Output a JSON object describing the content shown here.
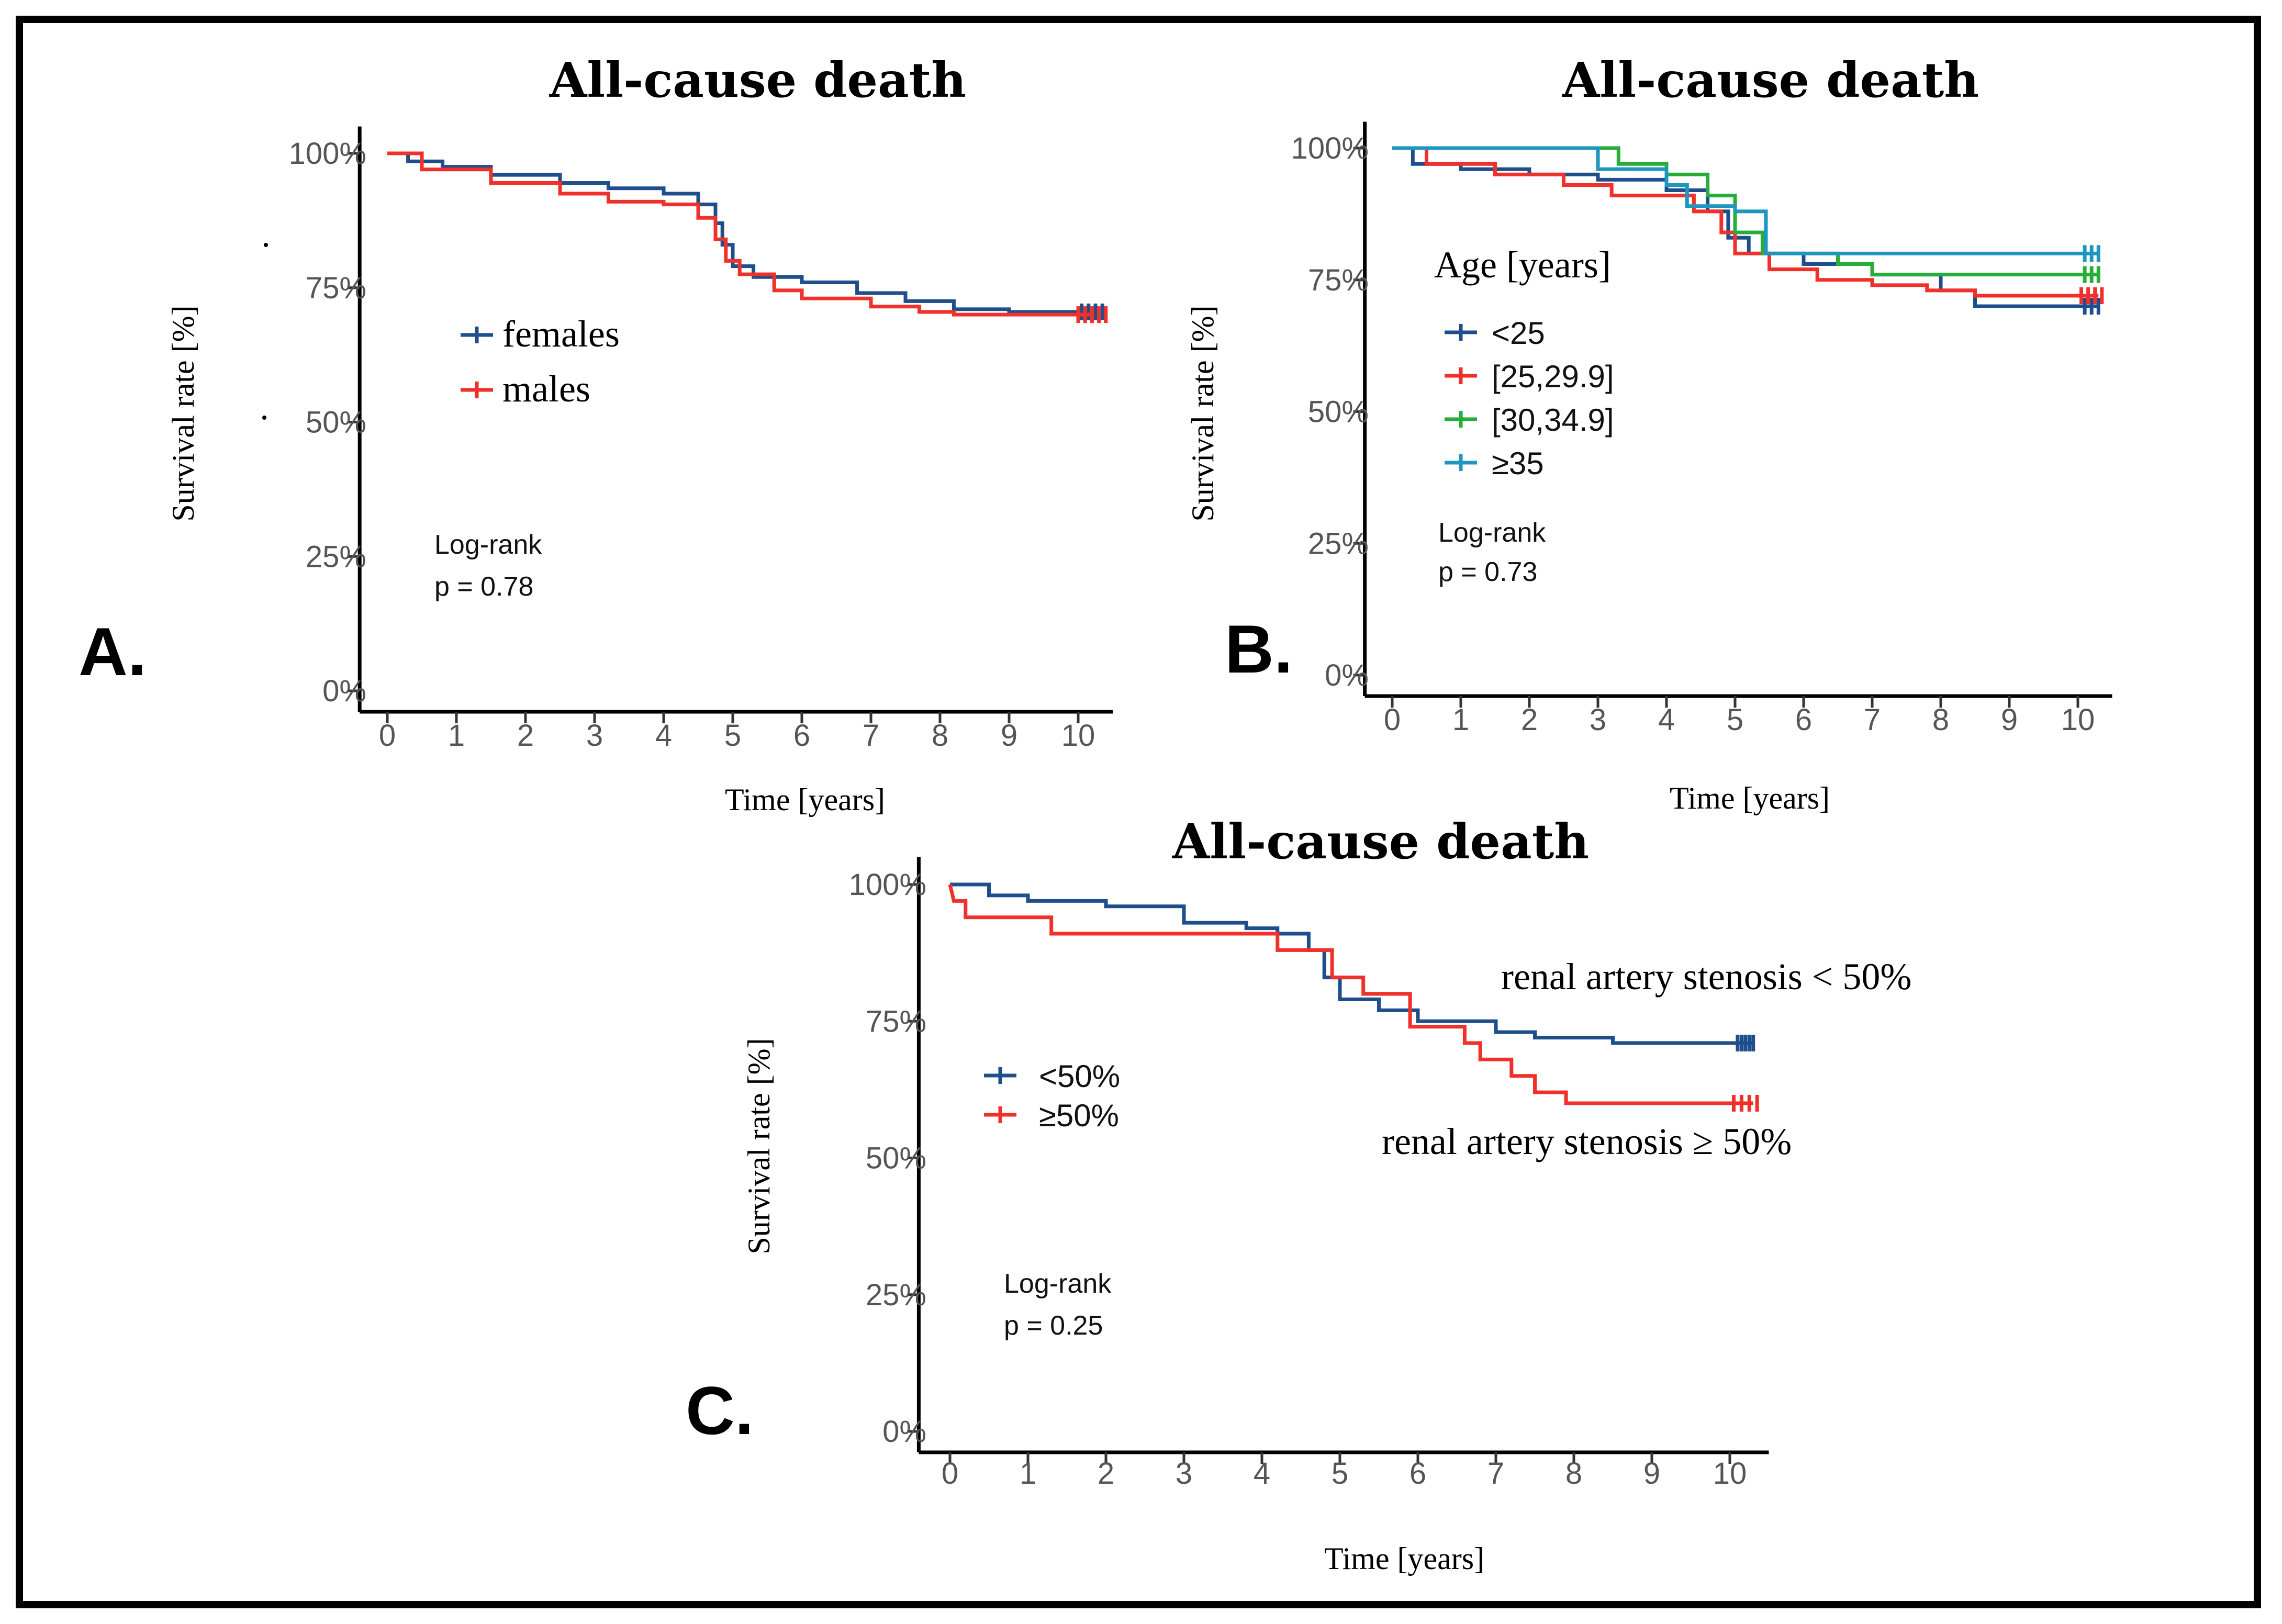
{
  "colors": {
    "blue": "#1f4e8c",
    "red": "#f0302a",
    "green": "#27ae3a",
    "teal": "#1e96c0"
  },
  "chart_data": [
    {
      "panel": "A.",
      "type": "line",
      "title": "All-cause death",
      "xlabel": "Time [years]",
      "ylabel": "Survival rate [%]",
      "xlim": [
        -0.4,
        10.5
      ],
      "ylim": [
        0,
        105
      ],
      "xticks": [
        "0",
        "1",
        "2",
        "3",
        "4",
        "5",
        "6",
        "7",
        "8",
        "9",
        "10"
      ],
      "yticks": [
        "0%",
        "25%",
        "50%",
        "75%",
        "100%"
      ],
      "legend": {
        "style": "serif",
        "title": "",
        "placement": "left-middle"
      },
      "annotation": {
        "line1": "Log-rank",
        "line2": "p = 0.78"
      },
      "series": [
        {
          "name": "females",
          "color": "#1f4e8c",
          "points": [
            [
              0,
              100
            ],
            [
              0.3,
              98.5
            ],
            [
              0.8,
              97.5
            ],
            [
              1.5,
              96
            ],
            [
              2.5,
              94.5
            ],
            [
              3.2,
              93.5
            ],
            [
              4,
              92.5
            ],
            [
              4.5,
              90.5
            ],
            [
              4.75,
              87
            ],
            [
              4.85,
              83
            ],
            [
              5,
              79
            ],
            [
              5.3,
              77
            ],
            [
              6,
              76
            ],
            [
              6.8,
              74
            ],
            [
              7.5,
              72.5
            ],
            [
              8.2,
              71
            ],
            [
              9,
              70.5
            ],
            [
              10.2,
              70.5
            ]
          ],
          "censor": [
            10.05,
            10.15,
            10.25,
            10.35
          ]
        },
        {
          "name": "males",
          "color": "#f0302a",
          "points": [
            [
              0,
              100
            ],
            [
              0.5,
              97
            ],
            [
              1.5,
              94.5
            ],
            [
              2.5,
              92.5
            ],
            [
              3.2,
              91
            ],
            [
              4,
              90.5
            ],
            [
              4.5,
              88
            ],
            [
              4.75,
              84
            ],
            [
              4.9,
              80
            ],
            [
              5.1,
              77.5
            ],
            [
              5.6,
              74.5
            ],
            [
              6,
              73
            ],
            [
              7,
              71.5
            ],
            [
              7.7,
              70.5
            ],
            [
              8.2,
              70
            ],
            [
              10.2,
              70
            ]
          ],
          "censor": [
            10,
            10.1,
            10.2,
            10.3,
            10.4
          ]
        }
      ]
    },
    {
      "panel": "B.",
      "type": "line",
      "title": "All-cause death",
      "xlabel": "Time [years]",
      "ylabel": "Survival rate [%]",
      "xlim": [
        -0.4,
        10.5
      ],
      "ylim": [
        0,
        105
      ],
      "xticks": [
        "0",
        "1",
        "2",
        "3",
        "4",
        "5",
        "6",
        "7",
        "8",
        "9",
        "10"
      ],
      "yticks": [
        "0%",
        "25%",
        "50%",
        "75%",
        "100%"
      ],
      "legend": {
        "style": "sans",
        "title": "Age [years]",
        "placement": "left-middle"
      },
      "annotation": {
        "line1": "Log-rank",
        "line2": "p = 0.73"
      },
      "series": [
        {
          "name": "<25",
          "color": "#1f4e8c",
          "points": [
            [
              0,
              100
            ],
            [
              0.3,
              97
            ],
            [
              1,
              96
            ],
            [
              2,
              95
            ],
            [
              3,
              94
            ],
            [
              4,
              92
            ],
            [
              4.6,
              88
            ],
            [
              4.9,
              83
            ],
            [
              5.2,
              80
            ],
            [
              6,
              78
            ],
            [
              7,
              76
            ],
            [
              8,
              73
            ],
            [
              8.5,
              70
            ],
            [
              10.3,
              70
            ]
          ],
          "censor": [
            10.1,
            10.2,
            10.3
          ]
        },
        {
          "name": "[25,29.9]",
          "color": "#f0302a",
          "points": [
            [
              0,
              100
            ],
            [
              0.5,
              97
            ],
            [
              1.5,
              95
            ],
            [
              2.5,
              93
            ],
            [
              3.2,
              91
            ],
            [
              4.4,
              88
            ],
            [
              4.8,
              84
            ],
            [
              5,
              80
            ],
            [
              5.5,
              77
            ],
            [
              6.2,
              75
            ],
            [
              7,
              74
            ],
            [
              7.8,
              73
            ],
            [
              8.5,
              72
            ],
            [
              10.3,
              72
            ]
          ],
          "censor": [
            10.05,
            10.15,
            10.25,
            10.35
          ]
        },
        {
          "name": "[30,34.9]",
          "color": "#27ae3a",
          "points": [
            [
              0,
              100
            ],
            [
              2.6,
              100
            ],
            [
              3.3,
              97
            ],
            [
              4,
              95
            ],
            [
              4.6,
              91
            ],
            [
              5,
              84
            ],
            [
              5.4,
              80
            ],
            [
              6.5,
              78
            ],
            [
              7,
              76
            ],
            [
              10.3,
              76
            ]
          ],
          "censor": [
            10.1,
            10.2,
            10.3
          ]
        },
        {
          "name": "≥35",
          "color": "#1e96c0",
          "points": [
            [
              0,
              100
            ],
            [
              3,
              100
            ],
            [
              3,
              96
            ],
            [
              4,
              96
            ],
            [
              4,
              93
            ],
            [
              4.3,
              89
            ],
            [
              5,
              89
            ],
            [
              5,
              88
            ],
            [
              5.3,
              88
            ],
            [
              5.45,
              80
            ],
            [
              10.3,
              80
            ]
          ],
          "censor": [
            10.1,
            10.2,
            10.3
          ]
        }
      ]
    },
    {
      "panel": "C.",
      "type": "line",
      "title": "All-cause death",
      "xlabel": "Time [years]",
      "ylabel": "Survival rate [%]",
      "xlim": [
        -0.4,
        10.5
      ],
      "ylim": [
        0,
        105
      ],
      "xticks": [
        "0",
        "1",
        "2",
        "3",
        "4",
        "5",
        "6",
        "7",
        "8",
        "9",
        "10"
      ],
      "yticks": [
        "0%",
        "25%",
        "50%",
        "75%",
        "100%"
      ],
      "legend": {
        "style": "sans",
        "title": "",
        "placement": "left-middle"
      },
      "annotation": {
        "line1": "Log-rank",
        "line2": "p = 0.25"
      },
      "callouts": {
        "upper": "renal artery stenosis < 50%",
        "lower": "renal artery stenosis ≥ 50%"
      },
      "series": [
        {
          "name": "<50%",
          "color": "#1f4e8c",
          "points": [
            [
              0,
              100
            ],
            [
              0.5,
              98
            ],
            [
              1,
              97
            ],
            [
              2,
              96
            ],
            [
              3,
              93
            ],
            [
              3.8,
              92
            ],
            [
              4.2,
              91
            ],
            [
              4.6,
              88
            ],
            [
              4.8,
              83
            ],
            [
              5,
              79
            ],
            [
              5.5,
              77
            ],
            [
              6,
              75
            ],
            [
              7,
              73
            ],
            [
              7.5,
              72
            ],
            [
              8.5,
              71
            ],
            [
              10.3,
              71
            ]
          ],
          "censor": [
            10.1,
            10.15,
            10.2,
            10.25,
            10.3
          ]
        },
        {
          "name": "≥50%",
          "color": "#f0302a",
          "steps": [
            [
              0,
              100
            ],
            [
              0.05,
              97
            ],
            [
              0.2,
              97
            ],
            [
              0.2,
              94
            ],
            [
              1.3,
              94
            ],
            [
              1.3,
              91
            ],
            [
              4.2,
              91
            ],
            [
              4.2,
              88
            ],
            [
              4.9,
              88
            ],
            [
              4.9,
              83
            ],
            [
              5.3,
              83
            ],
            [
              5.3,
              80
            ],
            [
              5.9,
              80
            ],
            [
              5.9,
              74
            ],
            [
              6.6,
              74
            ],
            [
              6.6,
              71
            ],
            [
              6.8,
              71
            ],
            [
              6.8,
              68
            ],
            [
              7.2,
              68
            ],
            [
              7.2,
              65
            ],
            [
              7.5,
              65
            ],
            [
              7.5,
              62
            ],
            [
              7.9,
              62
            ],
            [
              7.9,
              60
            ],
            [
              10.3,
              60
            ]
          ],
          "censor": [
            10.05,
            10.15,
            10.25,
            10.35
          ]
        }
      ]
    }
  ]
}
